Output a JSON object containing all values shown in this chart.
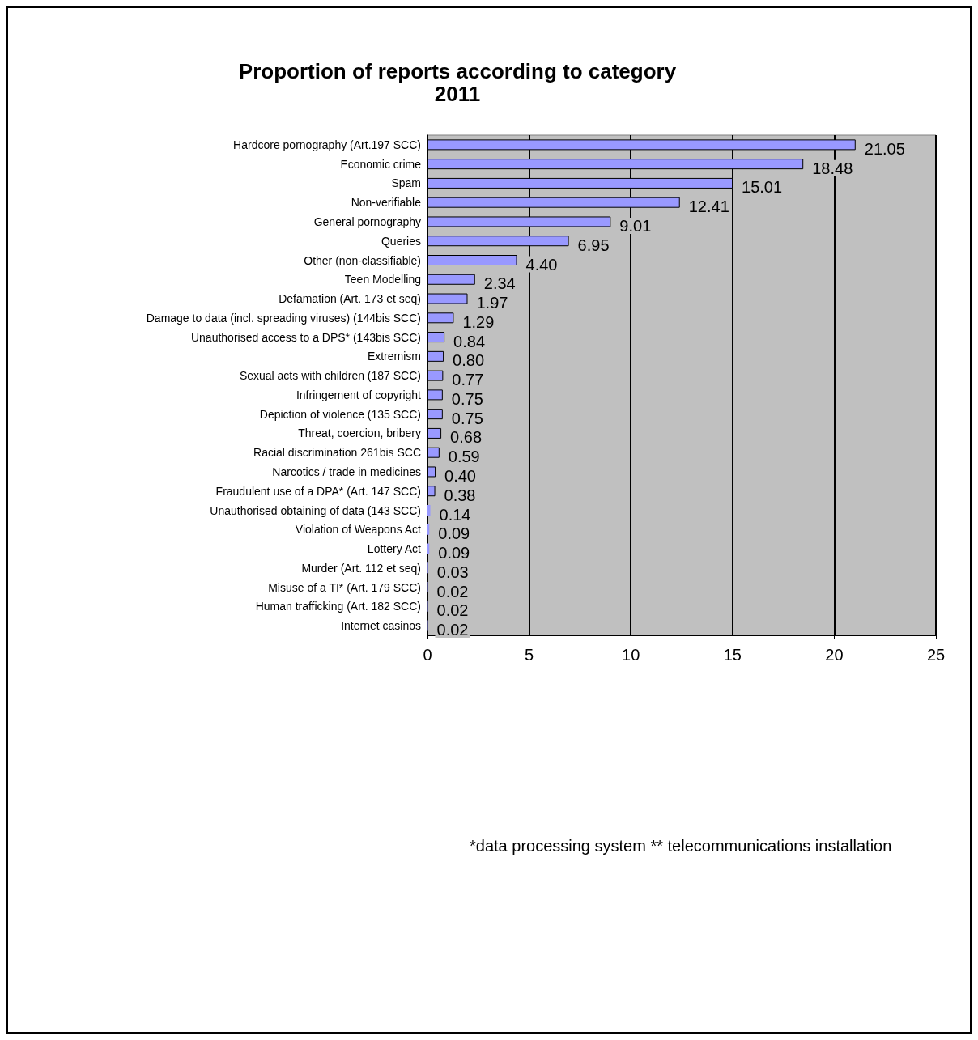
{
  "chart_data": {
    "type": "bar",
    "orientation": "horizontal",
    "title": "Proportion of reports according to category",
    "subtitle": "2011",
    "categories": [
      "Hardcore pornography (Art.197 SCC)",
      "Economic crime",
      "Spam",
      "Non-verifiable",
      "General pornography",
      "Queries",
      "Other (non-classifiable)",
      "Teen Modelling",
      "Defamation (Art. 173 et seq)",
      "Damage to data (incl. spreading viruses) (144bis SCC)",
      "Unauthorised access to a DPS* (143bis SCC)",
      "Extremism",
      "Sexual acts with children (187 SCC)",
      "Infringement of copyright",
      "Depiction of violence (135 SCC)",
      "Threat, coercion, bribery",
      "Racial discrimination 261bis SCC",
      "Narcotics / trade in medicines",
      "Fraudulent use of a DPA* (Art. 147 SCC)",
      "Unauthorised obtaining of data (143 SCC)",
      "Violation of Weapons Act",
      "Lottery Act",
      "Murder (Art. 112 et seq)",
      "Misuse of a TI* (Art. 179 SCC)",
      "Human trafficking (Art. 182 SCC)",
      "Internet casinos"
    ],
    "values": [
      21.05,
      18.48,
      15.01,
      12.41,
      9.01,
      6.95,
      4.4,
      2.34,
      1.97,
      1.29,
      0.84,
      0.8,
      0.77,
      0.75,
      0.75,
      0.68,
      0.59,
      0.4,
      0.38,
      0.14,
      0.09,
      0.09,
      0.03,
      0.02,
      0.02,
      0.02
    ],
    "value_labels": [
      "21.05",
      "18.48",
      "15.01",
      "12.41",
      "9.01",
      "6.95",
      "4.40",
      "2.34",
      "1.97",
      "1.29",
      "0.84",
      "0.80",
      "0.77",
      "0.75",
      "0.75",
      "0.68",
      "0.59",
      "0.40",
      "0.38",
      "0.14",
      "0.09",
      "0.09",
      "0.03",
      "0.02",
      "0.02",
      "0.02"
    ],
    "color": "#9999ff",
    "xlim": [
      0,
      25
    ],
    "xticks": [
      0,
      5,
      10,
      15,
      20,
      25
    ],
    "grid": "x",
    "annotations": [
      "*data processing system ** telecommunications installation"
    ]
  }
}
